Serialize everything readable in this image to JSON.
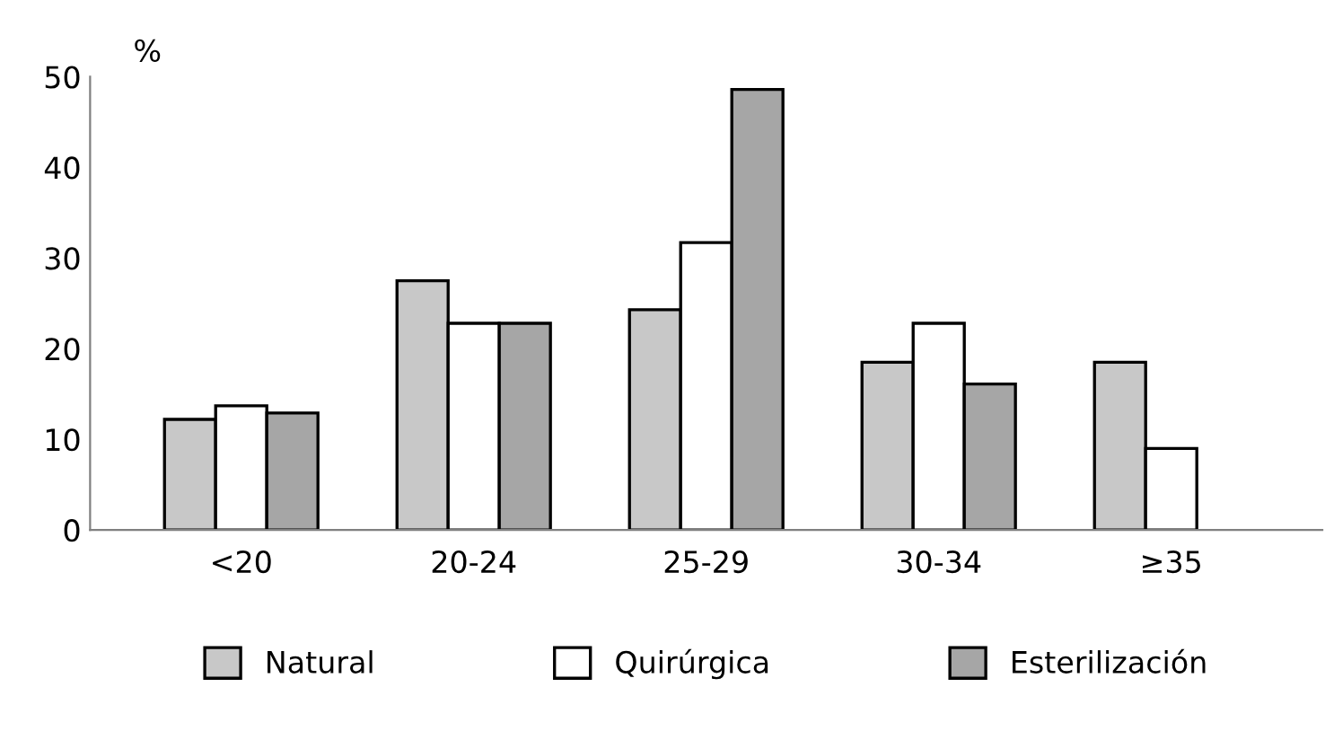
{
  "chart_data": {
    "type": "bar",
    "ylabel": "%",
    "categories": [
      "<20",
      "20-24",
      "25-29",
      "30-34",
      "≥35"
    ],
    "series": [
      {
        "name": "Natural",
        "color": "#c8c8c8",
        "values": [
          12.2,
          27.5,
          24.3,
          18.5,
          18.5
        ]
      },
      {
        "name": "Quirúrgica",
        "color": "#ffffff",
        "values": [
          13.7,
          22.8,
          31.7,
          22.8,
          9.0
        ]
      },
      {
        "name": "Esterilización",
        "color": "#a6a6a6",
        "values": [
          12.9,
          22.8,
          48.6,
          16.1,
          null
        ]
      }
    ],
    "ylim": [
      0,
      50
    ],
    "yticks": [
      0,
      10,
      20,
      30,
      40,
      50
    ],
    "grid": false,
    "legend": "bottom"
  }
}
